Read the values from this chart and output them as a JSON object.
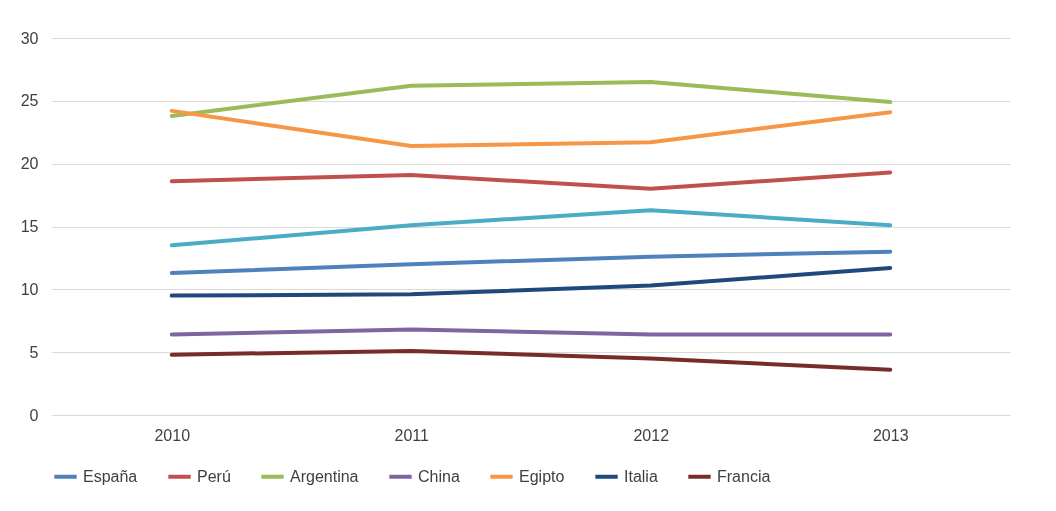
{
  "chart_data": {
    "type": "line",
    "categories": [
      "2010",
      "2011",
      "2012",
      "2013"
    ],
    "series": [
      {
        "name": "España",
        "color": "#4f81bd",
        "values": [
          11.3,
          12.0,
          12.6,
          13.0
        ]
      },
      {
        "name": "Perú",
        "color": "#c0504d",
        "values": [
          18.6,
          19.1,
          18.0,
          19.3
        ]
      },
      {
        "name": "Argentina",
        "color": "#9bbb59",
        "values": [
          23.8,
          26.2,
          26.5,
          24.9
        ]
      },
      {
        "name": "China",
        "color": "#8064a2",
        "values": [
          6.4,
          6.8,
          6.4,
          6.4
        ]
      },
      {
        "name": "Egipto",
        "color": "#f79646",
        "values": [
          24.2,
          21.4,
          21.7,
          24.1
        ]
      },
      {
        "name": "Italia",
        "color": "#1f497d",
        "values": [
          9.5,
          9.6,
          10.3,
          11.7
        ]
      },
      {
        "name": "Francia",
        "color": "#772c2a",
        "values": [
          4.8,
          5.1,
          4.5,
          3.6
        ]
      },
      {
        "color": "#4bacc6",
        "values": [
          13.5,
          15.1,
          16.3,
          15.1
        ]
      }
    ],
    "ylim": [
      0,
      30
    ],
    "yticks": [
      0,
      5,
      10,
      15,
      20,
      25,
      30
    ],
    "grid": "y",
    "legend": "bottom",
    "marker": "none",
    "line_style": "solid"
  }
}
